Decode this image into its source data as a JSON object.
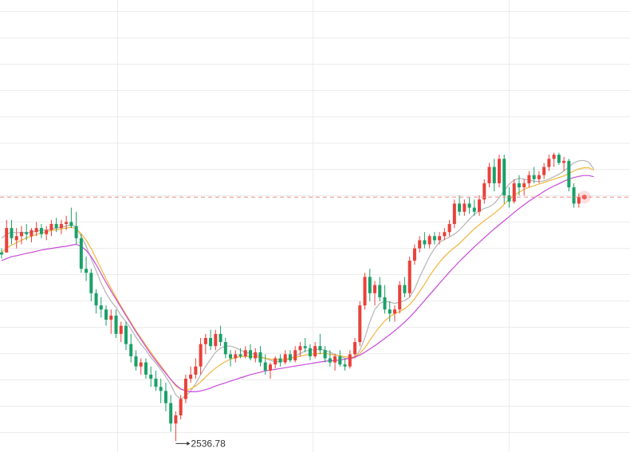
{
  "colors": {
    "up": "#e8413a",
    "down": "#1aa068",
    "ma_gray": "#b4b4b4",
    "ma_yellow": "#f3b53c",
    "ma_purple": "#c84ad8",
    "grid": "#ececec",
    "price_line": "#f08b8b",
    "marker": "#f25d5d"
  },
  "chart_data": {
    "type": "candlestick",
    "title": "",
    "xlabel": "",
    "ylabel": "",
    "ylim": [
      2510,
      3620
    ],
    "grid": true,
    "annotations": {
      "min_label": "2536.78",
      "min_value": 2536.78,
      "current_price": 3136
    },
    "candles": [
      [
        3000,
        3010,
        2985,
        2995
      ],
      [
        3000,
        3080,
        3000,
        3060
      ],
      [
        3060,
        3080,
        3020,
        3035
      ],
      [
        3030,
        3060,
        3010,
        3040
      ],
      [
        3040,
        3065,
        3020,
        3050
      ],
      [
        3050,
        3070,
        3030,
        3045
      ],
      [
        3040,
        3060,
        3025,
        3055
      ],
      [
        3050,
        3075,
        3040,
        3060
      ],
      [
        3060,
        3070,
        3035,
        3045
      ],
      [
        3045,
        3065,
        3030,
        3055
      ],
      [
        3055,
        3080,
        3040,
        3070
      ],
      [
        3070,
        3085,
        3050,
        3060
      ],
      [
        3060,
        3080,
        3045,
        3070
      ],
      [
        3070,
        3090,
        3055,
        3075
      ],
      [
        3075,
        3110,
        3060,
        3065
      ],
      [
        3065,
        3100,
        3020,
        3035
      ],
      [
        3035,
        3045,
        2950,
        2960
      ],
      [
        2960,
        2990,
        2930,
        2950
      ],
      [
        2950,
        2960,
        2880,
        2900
      ],
      [
        2900,
        2910,
        2850,
        2870
      ],
      [
        2870,
        2890,
        2840,
        2860
      ],
      [
        2860,
        2870,
        2820,
        2835
      ],
      [
        2835,
        2860,
        2800,
        2845
      ],
      [
        2845,
        2860,
        2790,
        2800
      ],
      [
        2800,
        2830,
        2780,
        2820
      ],
      [
        2820,
        2830,
        2760,
        2775
      ],
      [
        2775,
        2800,
        2730,
        2745
      ],
      [
        2745,
        2760,
        2710,
        2720
      ],
      [
        2720,
        2740,
        2700,
        2730
      ],
      [
        2730,
        2740,
        2690,
        2700
      ],
      [
        2700,
        2720,
        2670,
        2690
      ],
      [
        2690,
        2710,
        2660,
        2670
      ],
      [
        2670,
        2690,
        2630,
        2660
      ],
      [
        2660,
        2680,
        2610,
        2630
      ],
      [
        2630,
        2650,
        2560,
        2580
      ],
      [
        2580,
        2610,
        2536.78,
        2600
      ],
      [
        2600,
        2650,
        2590,
        2640
      ],
      [
        2640,
        2700,
        2630,
        2690
      ],
      [
        2690,
        2720,
        2680,
        2700
      ],
      [
        2700,
        2740,
        2690,
        2720
      ],
      [
        2720,
        2790,
        2700,
        2775
      ],
      [
        2775,
        2800,
        2750,
        2790
      ],
      [
        2790,
        2810,
        2760,
        2770
      ],
      [
        2770,
        2810,
        2760,
        2800
      ],
      [
        2800,
        2820,
        2770,
        2780
      ],
      [
        2780,
        2790,
        2740,
        2750
      ],
      [
        2750,
        2760,
        2720,
        2740
      ],
      [
        2740,
        2760,
        2730,
        2750
      ],
      [
        2750,
        2765,
        2740,
        2745
      ],
      [
        2745,
        2770,
        2740,
        2760
      ],
      [
        2760,
        2775,
        2735,
        2740
      ],
      [
        2740,
        2765,
        2730,
        2755
      ],
      [
        2755,
        2770,
        2720,
        2730
      ],
      [
        2730,
        2750,
        2700,
        2710
      ],
      [
        2710,
        2730,
        2690,
        2725
      ],
      [
        2725,
        2745,
        2715,
        2740
      ],
      [
        2740,
        2750,
        2720,
        2730
      ],
      [
        2730,
        2760,
        2725,
        2750
      ],
      [
        2750,
        2760,
        2730,
        2735
      ],
      [
        2735,
        2770,
        2730,
        2760
      ],
      [
        2760,
        2780,
        2745,
        2770
      ],
      [
        2770,
        2790,
        2755,
        2765
      ],
      [
        2765,
        2775,
        2735,
        2745
      ],
      [
        2745,
        2780,
        2740,
        2770
      ],
      [
        2770,
        2800,
        2750,
        2760
      ],
      [
        2760,
        2770,
        2730,
        2740
      ],
      [
        2740,
        2760,
        2720,
        2730
      ],
      [
        2730,
        2750,
        2710,
        2745
      ],
      [
        2745,
        2760,
        2720,
        2725
      ],
      [
        2725,
        2740,
        2710,
        2720
      ],
      [
        2720,
        2760,
        2715,
        2750
      ],
      [
        2750,
        2790,
        2740,
        2780
      ],
      [
        2780,
        2880,
        2770,
        2870
      ],
      [
        2870,
        2950,
        2860,
        2940
      ],
      [
        2940,
        2960,
        2880,
        2900
      ],
      [
        2900,
        2930,
        2870,
        2920
      ],
      [
        2920,
        2940,
        2880,
        2890
      ],
      [
        2890,
        2920,
        2850,
        2860
      ],
      [
        2860,
        2880,
        2830,
        2850
      ],
      [
        2850,
        2870,
        2830,
        2860
      ],
      [
        2860,
        2930,
        2850,
        2920
      ],
      [
        2920,
        2940,
        2890,
        2900
      ],
      [
        2900,
        2990,
        2890,
        2980
      ],
      [
        2980,
        3020,
        2970,
        3010
      ],
      [
        3010,
        3040,
        3000,
        3030
      ],
      [
        3030,
        3050,
        3010,
        3020
      ],
      [
        3020,
        3045,
        3010,
        3040
      ],
      [
        3040,
        3050,
        3020,
        3030
      ],
      [
        3030,
        3050,
        3020,
        3040
      ],
      [
        3040,
        3060,
        3030,
        3050
      ],
      [
        3050,
        3080,
        3040,
        3070
      ],
      [
        3070,
        3130,
        3060,
        3120
      ],
      [
        3120,
        3140,
        3090,
        3100
      ],
      [
        3100,
        3130,
        3090,
        3120
      ],
      [
        3120,
        3135,
        3095,
        3110
      ],
      [
        3110,
        3130,
        3090,
        3100
      ],
      [
        3100,
        3140,
        3090,
        3130
      ],
      [
        3130,
        3180,
        3120,
        3170
      ],
      [
        3170,
        3220,
        3160,
        3210
      ],
      [
        3210,
        3230,
        3150,
        3170
      ],
      [
        3170,
        3240,
        3160,
        3230
      ],
      [
        3230,
        3240,
        3120,
        3140
      ],
      [
        3140,
        3160,
        3110,
        3125
      ],
      [
        3125,
        3180,
        3120,
        3170
      ],
      [
        3170,
        3190,
        3140,
        3160
      ],
      [
        3160,
        3180,
        3140,
        3170
      ],
      [
        3170,
        3200,
        3160,
        3190
      ],
      [
        3190,
        3210,
        3170,
        3180
      ],
      [
        3180,
        3200,
        3170,
        3190
      ],
      [
        3190,
        3220,
        3180,
        3210
      ],
      [
        3210,
        3240,
        3200,
        3230
      ],
      [
        3230,
        3245,
        3210,
        3240
      ],
      [
        3240,
        3245,
        3215,
        3220
      ],
      [
        3220,
        3235,
        3200,
        3225
      ],
      [
        3225,
        3230,
        3150,
        3160
      ],
      [
        3160,
        3170,
        3110,
        3120
      ],
      [
        3120,
        3145,
        3110,
        3136
      ]
    ],
    "series": [
      {
        "values": [
          3035,
          3045,
          3050,
          3048,
          3050,
          3048,
          3050,
          3052,
          3055,
          3055,
          3058,
          3060,
          3062,
          3065,
          3068,
          3062,
          3040,
          3015,
          2985,
          2955,
          2925,
          2900,
          2880,
          2865,
          2845,
          2830,
          2812,
          2792,
          2775,
          2760,
          2742,
          2728,
          2712,
          2695,
          2675,
          2650,
          2640,
          2648,
          2660,
          2678,
          2700,
          2720,
          2738,
          2755,
          2765,
          2770,
          2770,
          2766,
          2760,
          2755,
          2752,
          2750,
          2745,
          2740,
          2735,
          2732,
          2732,
          2735,
          2740,
          2745,
          2752,
          2758,
          2760,
          2762,
          2762,
          2760,
          2755,
          2750,
          2745,
          2740,
          2738,
          2742,
          2760,
          2790,
          2830,
          2860,
          2875,
          2880,
          2878,
          2875,
          2878,
          2882,
          2890,
          2910,
          2940,
          2965,
          2990,
          3010,
          3025,
          3032,
          3038,
          3045,
          3055,
          3068,
          3082,
          3094,
          3102,
          3108,
          3112,
          3120,
          3135,
          3152,
          3168,
          3178,
          3182,
          3180,
          3178,
          3175,
          3174,
          3176,
          3180,
          3186,
          3192,
          3200,
          3210,
          3220,
          3225,
          3226,
          3222,
          3205
        ]
      },
      {
        "values": [
          3000,
          3010,
          3018,
          3024,
          3030,
          3036,
          3040,
          3044,
          3048,
          3051,
          3054,
          3056,
          3058,
          3060,
          3062,
          3058,
          3046,
          3030,
          3010,
          2985,
          2960,
          2935,
          2912,
          2890,
          2868,
          2848,
          2828,
          2808,
          2790,
          2772,
          2755,
          2738,
          2722,
          2705,
          2688,
          2672,
          2664,
          2662,
          2665,
          2672,
          2682,
          2694,
          2706,
          2716,
          2725,
          2732,
          2738,
          2742,
          2744,
          2745,
          2745,
          2744,
          2742,
          2740,
          2738,
          2737,
          2737,
          2738,
          2740,
          2742,
          2745,
          2748,
          2750,
          2751,
          2752,
          2752,
          2750,
          2748,
          2746,
          2744,
          2742,
          2744,
          2752,
          2766,
          2784,
          2802,
          2818,
          2832,
          2842,
          2850,
          2855,
          2862,
          2872,
          2886,
          2904,
          2922,
          2942,
          2960,
          2976,
          2990,
          3002,
          3012,
          3022,
          3034,
          3046,
          3058,
          3068,
          3078,
          3087,
          3096,
          3106,
          3118,
          3130,
          3140,
          3148,
          3155,
          3160,
          3164,
          3168,
          3172,
          3176,
          3180,
          3184,
          3188,
          3194,
          3200,
          3205,
          3208,
          3208,
          3202
        ]
      },
      {
        "values": [
          2980,
          2985,
          2990,
          2992,
          2995,
          2998,
          3000,
          3003,
          3006,
          3008,
          3010,
          3012,
          3014,
          3015,
          3018,
          3020,
          3015,
          3005,
          2990,
          2970,
          2948,
          2926,
          2905,
          2885,
          2865,
          2845,
          2825,
          2805,
          2787,
          2768,
          2750,
          2734,
          2718,
          2703,
          2688,
          2675,
          2665,
          2660,
          2658,
          2658,
          2660,
          2663,
          2667,
          2672,
          2676,
          2680,
          2684,
          2688,
          2692,
          2696,
          2700,
          2703,
          2706,
          2709,
          2711,
          2713,
          2715,
          2717,
          2719,
          2721,
          2723,
          2725,
          2727,
          2729,
          2731,
          2733,
          2734,
          2735,
          2736,
          2738,
          2740,
          2743,
          2748,
          2755,
          2763,
          2771,
          2780,
          2789,
          2798,
          2808,
          2818,
          2829,
          2841,
          2854,
          2868,
          2882,
          2896,
          2910,
          2924,
          2938,
          2952,
          2965,
          2978,
          2990,
          3002,
          3014,
          3025,
          3036,
          3047,
          3058,
          3068,
          3078,
          3088,
          3098,
          3108,
          3117,
          3126,
          3134,
          3142,
          3150,
          3157,
          3163,
          3169,
          3175,
          3180,
          3184,
          3187,
          3189,
          3189,
          3186
        ]
      }
    ]
  }
}
